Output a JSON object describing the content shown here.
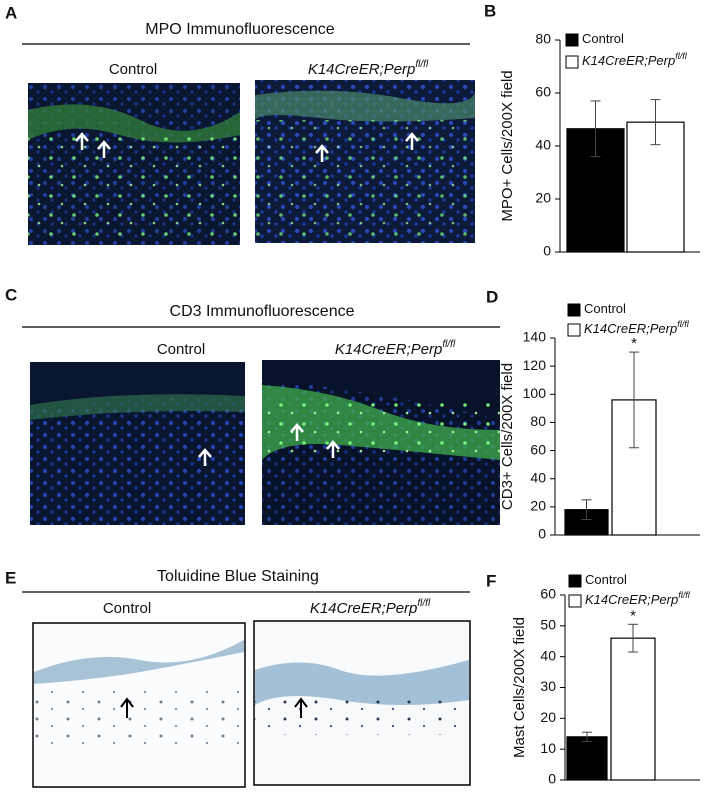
{
  "panels": [
    "A",
    "B",
    "C",
    "D",
    "E",
    "F"
  ],
  "images": [
    {
      "title": "MPO Immunofluorescence",
      "label_left": "Control",
      "label_right": "K14CreER;Perp",
      "label_right_sup": "fl/fl"
    },
    {
      "title": "CD3 Immunofluorescence",
      "label_left": "Control",
      "label_right": "K14CreER;Perp",
      "label_right_sup": "fl/fl"
    },
    {
      "title": "Toluidine Blue Staining",
      "label_left": "Control",
      "label_right": "K14CreER;Perp",
      "label_right_sup": "fl/fl"
    }
  ],
  "chart_data": [
    {
      "type": "bar",
      "y_label": "MPO+ Cells/200X field",
      "ylim": [
        0,
        80
      ],
      "yticks": [
        0,
        20,
        40,
        60,
        80
      ],
      "series": [
        {
          "name": "Control",
          "color": "#000000",
          "values": [
            46.5
          ],
          "errors": [
            10.5
          ]
        },
        {
          "name": "K14CreER;Perp",
          "name_sup": "fl/fl",
          "color": "#ffffff",
          "values": [
            49
          ],
          "errors": [
            8.5
          ]
        }
      ]
    },
    {
      "type": "bar",
      "y_label": "CD3+ Cells/200X field",
      "ylim": [
        0,
        140
      ],
      "yticks": [
        0,
        20,
        40,
        60,
        80,
        100,
        120,
        140
      ],
      "annotation": "*",
      "series": [
        {
          "name": "Control",
          "color": "#000000",
          "values": [
            18
          ],
          "errors": [
            7
          ]
        },
        {
          "name": "K14CreER;Perp",
          "name_sup": "fl/fl",
          "color": "#ffffff",
          "values": [
            96
          ],
          "errors": [
            34
          ]
        }
      ]
    },
    {
      "type": "bar",
      "y_label": "Mast Cells/200X field",
      "ylim": [
        0,
        60
      ],
      "yticks": [
        0,
        10,
        20,
        30,
        40,
        50,
        60
      ],
      "annotation": "*",
      "series": [
        {
          "name": "Control",
          "color": "#000000",
          "values": [
            14
          ],
          "errors": [
            1.5
          ]
        },
        {
          "name": "K14CreER;Perp",
          "name_sup": "fl/fl",
          "color": "#ffffff",
          "values": [
            46
          ],
          "errors": [
            4.5
          ]
        }
      ]
    }
  ]
}
